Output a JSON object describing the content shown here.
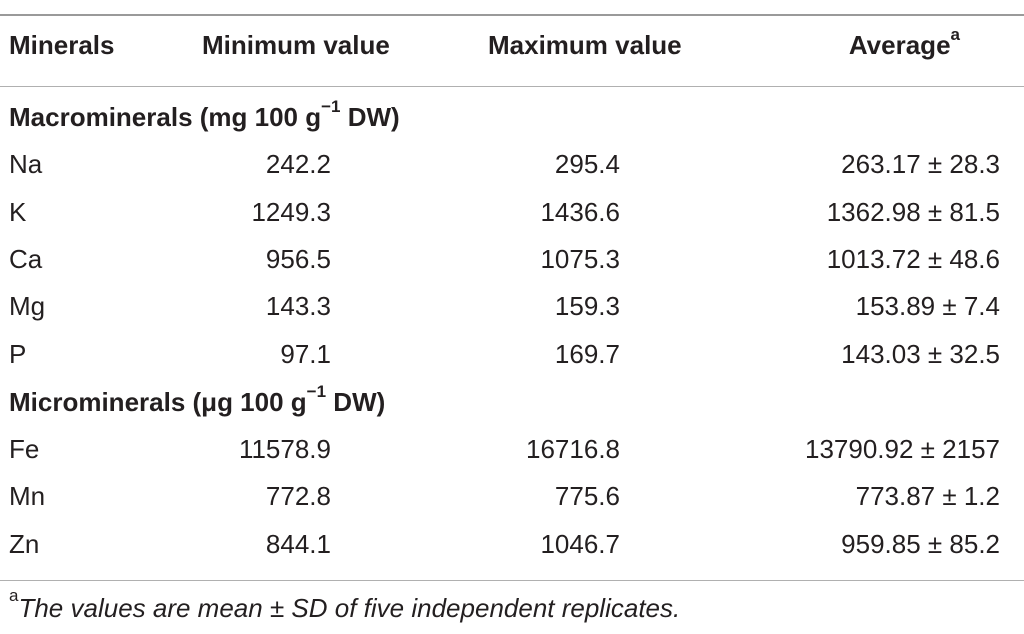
{
  "table": {
    "headers": {
      "minerals": "Minerals",
      "minimum": "Minimum value",
      "maximum": "Maximum value",
      "average": "Average",
      "average_footnote_mark": "a"
    },
    "sections": [
      {
        "title_prefix": "Macrominerals (mg 100 g",
        "title_exponent": "−1",
        "title_suffix": " DW)",
        "rows": [
          {
            "mineral": "Na",
            "min": "242.2",
            "max": "295.4",
            "avg": "263.17 ± 28.3"
          },
          {
            "mineral": "K",
            "min": "1249.3",
            "max": "1436.6",
            "avg": "1362.98 ± 81.5"
          },
          {
            "mineral": "Ca",
            "min": "956.5",
            "max": "1075.3",
            "avg": "1013.72 ± 48.6"
          },
          {
            "mineral": "Mg",
            "min": "143.3",
            "max": "159.3",
            "avg": "153.89 ± 7.4"
          },
          {
            "mineral": "P",
            "min": "97.1",
            "max": "169.7",
            "avg": "143.03 ± 32.5"
          }
        ]
      },
      {
        "title_prefix": "Microminerals (μg 100 g",
        "title_exponent": "−1",
        "title_suffix": " DW)",
        "rows": [
          {
            "mineral": "Fe",
            "min": "11578.9",
            "max": "16716.8",
            "avg": "13790.92 ± 2157"
          },
          {
            "mineral": "Mn",
            "min": "772.8",
            "max": "775.6",
            "avg": "773.87 ± 1.2"
          },
          {
            "mineral": "Zn",
            "min": "844.1",
            "max": "1046.7",
            "avg": "959.85 ± 85.2"
          }
        ]
      }
    ],
    "footnote": {
      "mark": "a",
      "text": "The values are mean ± SD of five independent replicates."
    }
  }
}
